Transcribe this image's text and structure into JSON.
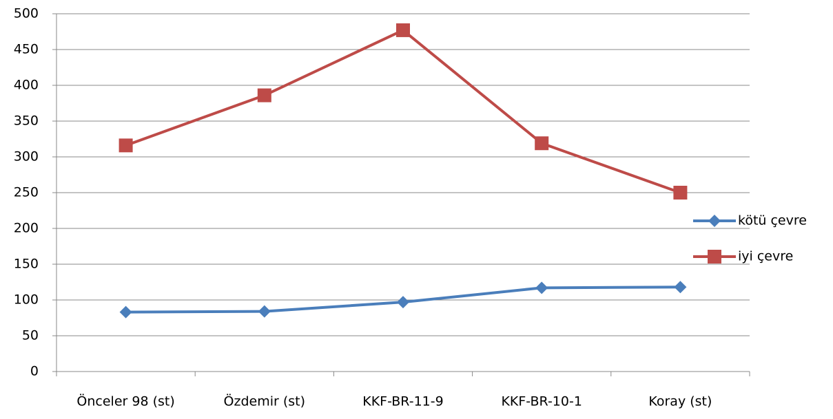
{
  "chart_data": {
    "type": "line",
    "categories": [
      "Önceler 98 (st)",
      "Özdemir (st)",
      "KKF-BR-11-9",
      "KKF-BR-10-1",
      "Koray (st)"
    ],
    "series": [
      {
        "name": "kötü çevre",
        "color": "#4a7ebb",
        "marker": "diamond",
        "values": [
          83,
          84,
          97,
          117,
          118
        ]
      },
      {
        "name": "iyi çevre",
        "color": "#be4b48",
        "marker": "square",
        "values": [
          316,
          386,
          477,
          319,
          250
        ]
      }
    ],
    "ylim": [
      0,
      500
    ],
    "yticks": [
      0,
      50,
      100,
      150,
      200,
      250,
      300,
      350,
      400,
      450,
      500
    ],
    "grid": true,
    "legend": "right"
  }
}
